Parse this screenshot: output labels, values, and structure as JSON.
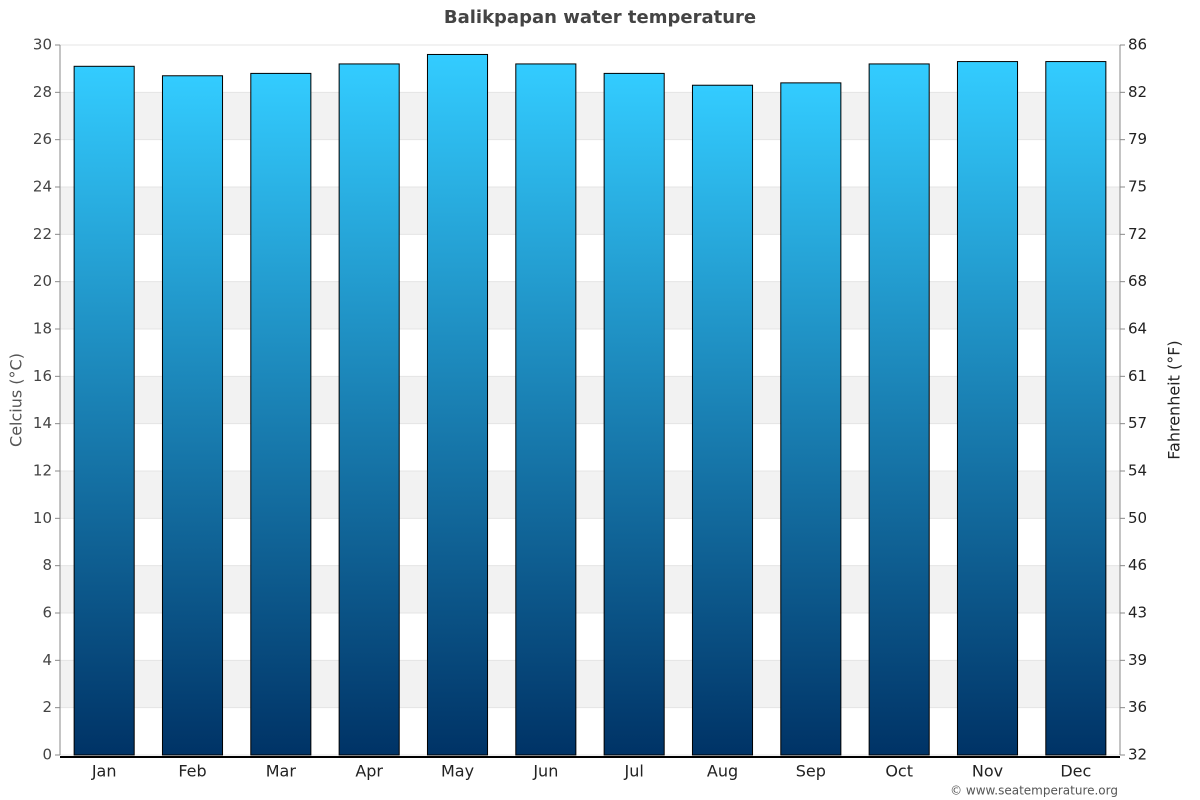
{
  "chart_data": {
    "type": "bar",
    "title": "Balikpapan water temperature",
    "categories": [
      "Jan",
      "Feb",
      "Mar",
      "Apr",
      "May",
      "Jun",
      "Jul",
      "Aug",
      "Sep",
      "Oct",
      "Nov",
      "Dec"
    ],
    "values": [
      29.1,
      28.7,
      28.8,
      29.2,
      29.6,
      29.2,
      28.8,
      28.3,
      28.4,
      29.2,
      29.3,
      29.3
    ],
    "gradient": [
      "#33ccff",
      "#003366"
    ],
    "ylabel": "Celcius (°C)",
    "y2label": "Fahrenheit (°F)",
    "ylim": [
      0,
      30
    ],
    "yticks": [
      0,
      2,
      4,
      6,
      8,
      10,
      12,
      14,
      16,
      18,
      20,
      22,
      24,
      26,
      28,
      30
    ],
    "y2lim": [
      32,
      86
    ],
    "y2ticks": [
      32,
      {
        "value": 35.6,
        "label": "36"
      },
      {
        "value": 39.2,
        "label": "39"
      },
      {
        "value": 42.8,
        "label": "43"
      },
      {
        "value": 46.4,
        "label": "46"
      },
      50,
      {
        "value": 53.6,
        "label": "54"
      },
      {
        "value": 57.2,
        "label": "57"
      },
      {
        "value": 60.8,
        "label": "61"
      },
      {
        "value": 64.4,
        "label": "64"
      },
      68,
      {
        "value": 71.6,
        "label": "72"
      },
      {
        "value": 75.2,
        "label": "75"
      },
      {
        "value": 78.8,
        "label": "79"
      },
      {
        "value": 82.4,
        "label": "82"
      },
      86
    ],
    "grid": true,
    "credit": "© www.seatemperature.org"
  }
}
